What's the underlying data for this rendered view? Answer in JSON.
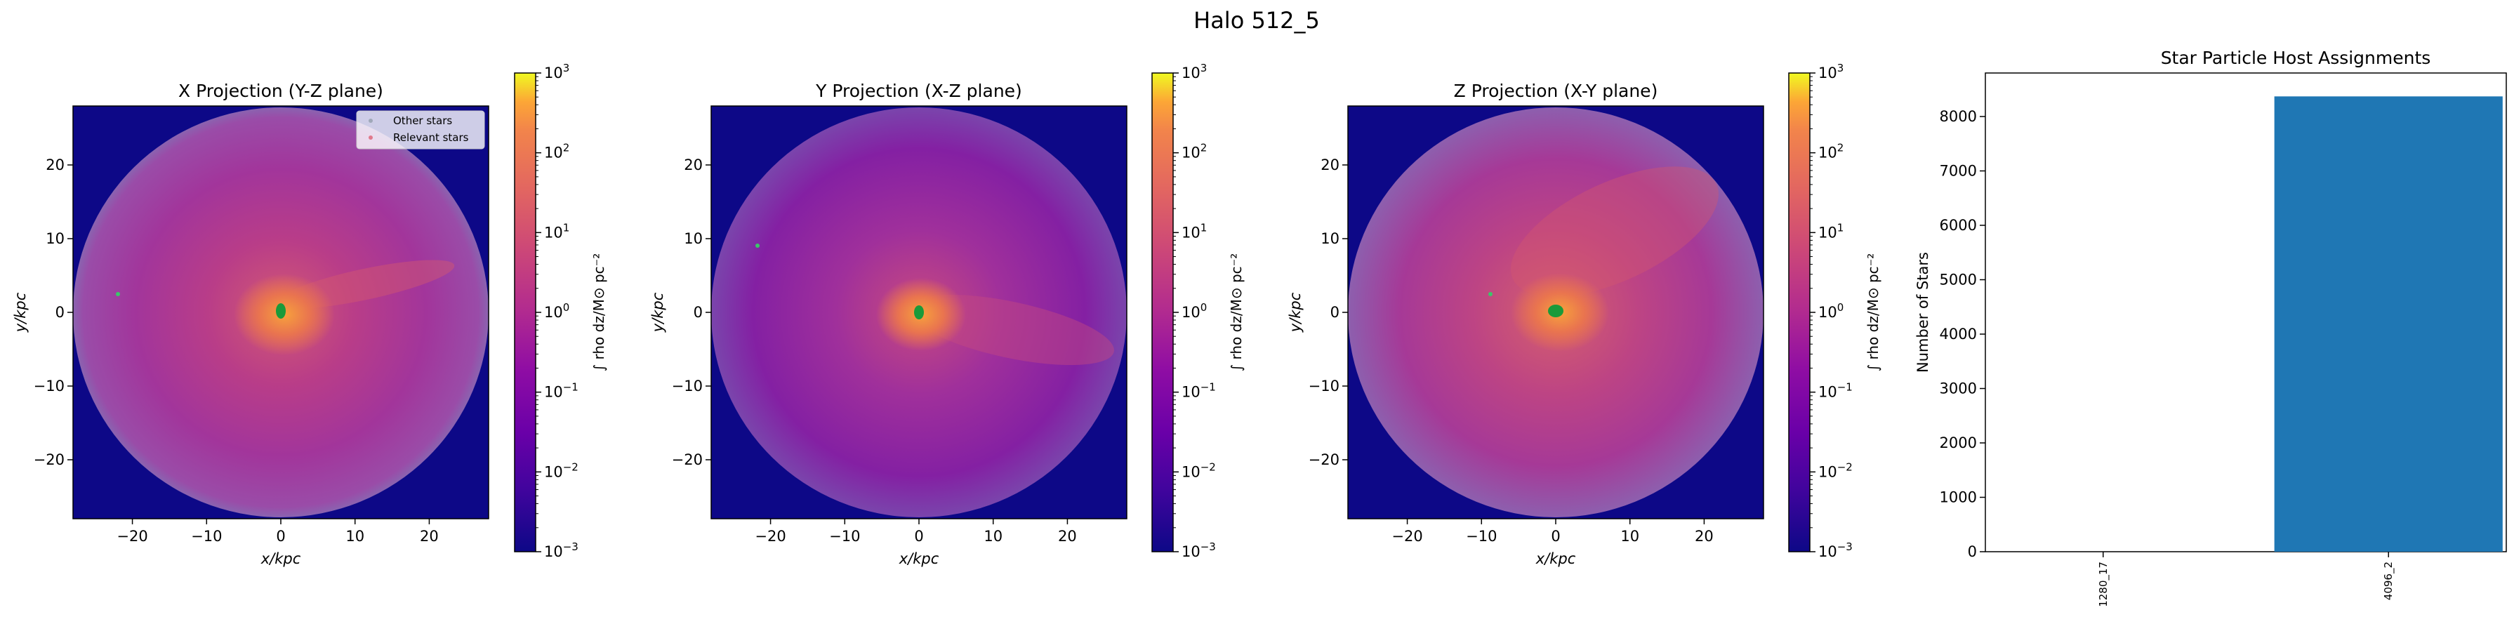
{
  "figure": {
    "title": "Halo 512_5"
  },
  "colorbar": {
    "label": "∫ rho dz/M⊙ pc⁻²",
    "ticks": [
      {
        "exp": -3,
        "base": "10",
        "sup": "−3"
      },
      {
        "exp": -2,
        "base": "10",
        "sup": "−2"
      },
      {
        "exp": -1,
        "base": "10",
        "sup": "−1"
      },
      {
        "exp": 0,
        "base": "10",
        "sup": "0"
      },
      {
        "exp": 1,
        "base": "10",
        "sup": "1"
      },
      {
        "exp": 2,
        "base": "10",
        "sup": "2"
      },
      {
        "exp": 3,
        "base": "10",
        "sup": "3"
      }
    ],
    "range": [
      -3,
      3
    ],
    "scale": "log",
    "colormap": "plasma"
  },
  "projections": [
    {
      "title": "X Projection (Y-Z plane)",
      "xlabel": "x/kpc",
      "ylabel": "y/kpc",
      "legend": {
        "items": [
          {
            "label": "Other stars"
          },
          {
            "label": "Relevant stars"
          }
        ]
      }
    },
    {
      "title": "Y Projection (X-Z plane)",
      "xlabel": "x/kpc",
      "ylabel": "y/kpc"
    },
    {
      "title": "Z Projection (X-Y plane)",
      "xlabel": "x/kpc",
      "ylabel": "y/kpc"
    }
  ],
  "axes_common": {
    "xlim": [
      -28,
      28
    ],
    "ylim": [
      -28,
      28
    ],
    "xticks": [
      -20,
      -10,
      0,
      10,
      20
    ],
    "yticks": [
      -20,
      -10,
      0,
      10,
      20
    ],
    "tick_labels": [
      "−20",
      "−10",
      "0",
      "10",
      "20"
    ]
  },
  "chart_data": [
    {
      "type": "heatmap",
      "title": "X Projection (Y-Z plane)",
      "xlabel": "x/kpc",
      "ylabel": "y/kpc",
      "xlim": [
        -28,
        28
      ],
      "ylim": [
        -28,
        28
      ],
      "colorbar_label": "∫ rho dz/M⊙ pc⁻²",
      "color_scale": "log",
      "color_range": [
        0.001,
        1000
      ],
      "legend": [
        "Other stars",
        "Relevant stars"
      ],
      "legend_placement": "top-right",
      "star_points": [
        {
          "x": -22,
          "y": 2.5
        },
        {
          "x": 0,
          "y": 0
        }
      ]
    },
    {
      "type": "heatmap",
      "title": "Y Projection (X-Z plane)",
      "xlabel": "x/kpc",
      "ylabel": "y/kpc",
      "xlim": [
        -28,
        28
      ],
      "ylim": [
        -28,
        28
      ],
      "colorbar_label": "∫ rho dz/M⊙ pc⁻²",
      "color_scale": "log",
      "color_range": [
        0.001,
        1000
      ],
      "star_points": [
        {
          "x": -21.5,
          "y": 9
        },
        {
          "x": 0,
          "y": 0
        }
      ]
    },
    {
      "type": "heatmap",
      "title": "Z Projection (X-Y plane)",
      "xlabel": "x/kpc",
      "ylabel": "y/kpc",
      "xlim": [
        -28,
        28
      ],
      "ylim": [
        -28,
        28
      ],
      "colorbar_label": "∫ rho dz/M⊙ pc⁻²",
      "color_scale": "log",
      "color_range": [
        0.001,
        1000
      ],
      "star_points": [
        {
          "x": -9,
          "y": 2.5
        },
        {
          "x": 0,
          "y": 0
        }
      ]
    },
    {
      "type": "bar",
      "title": "Star Particle Host Assignments",
      "categories": [
        "1280_17",
        "4096_2"
      ],
      "values": [
        0,
        8370
      ],
      "xlabel": "",
      "ylabel": "Number of Stars",
      "ylim": [
        0,
        8800
      ],
      "yticks": [
        0,
        1000,
        2000,
        3000,
        4000,
        5000,
        6000,
        7000,
        8000
      ],
      "color": "#1f77b4"
    }
  ]
}
